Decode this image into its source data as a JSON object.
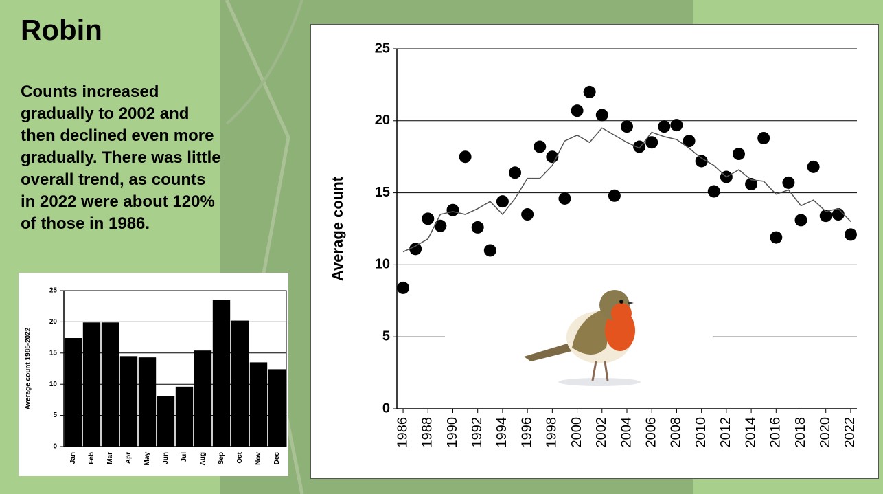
{
  "slide": {
    "title": "Robin",
    "text": [
      "Counts increased",
      "gradually to 2002 and",
      "then declined even more",
      "gradually. There was little",
      "overall trend, as counts",
      "in 2022 were about 120%",
      "of those in 1986."
    ]
  },
  "chart_data": [
    {
      "type": "scatter",
      "ylabel": "Average count",
      "x": [
        1986,
        1987,
        1988,
        1989,
        1990,
        1991,
        1992,
        1993,
        1994,
        1995,
        1996,
        1997,
        1998,
        1999,
        2000,
        2001,
        2002,
        2003,
        2004,
        2005,
        2006,
        2007,
        2008,
        2009,
        2010,
        2011,
        2012,
        2013,
        2014,
        2015,
        2016,
        2017,
        2018,
        2019,
        2020,
        2021,
        2022
      ],
      "series": [
        {
          "color": "#000000",
          "marker": "circle",
          "values": [
            8.4,
            11.1,
            13.2,
            12.7,
            13.8,
            17.5,
            12.6,
            11.0,
            14.4,
            16.4,
            13.5,
            18.2,
            17.5,
            14.6,
            20.7,
            22.0,
            20.4,
            14.8,
            19.6,
            18.2,
            18.5,
            19.6,
            19.7,
            18.6,
            17.2,
            15.1,
            16.1,
            17.7,
            15.6,
            18.8,
            11.9,
            15.7,
            13.1,
            16.8,
            13.4,
            13.5,
            12.1
          ]
        },
        {
          "color": "#555555",
          "marker": "line",
          "values": [
            10.9,
            11.3,
            11.8,
            13.5,
            13.7,
            13.5,
            13.9,
            14.4,
            13.5,
            14.6,
            16.0,
            16.0,
            16.9,
            18.6,
            19.0,
            18.5,
            19.5,
            19.0,
            18.5,
            18.1,
            19.2,
            18.9,
            18.7,
            18.1,
            17.4,
            16.9,
            16.1,
            16.6,
            15.9,
            15.8,
            14.9,
            15.2,
            14.1,
            14.5,
            13.7,
            13.9,
            13.0
          ]
        }
      ],
      "xlim": [
        1985.5,
        2022.5
      ],
      "xticks": [
        1986,
        1988,
        1990,
        1992,
        1994,
        1996,
        1998,
        2000,
        2002,
        2004,
        2006,
        2008,
        2010,
        2012,
        2014,
        2016,
        2018,
        2020,
        2022
      ],
      "ylim": [
        0,
        25
      ],
      "yticks": [
        0,
        5,
        10,
        15,
        20,
        25
      ],
      "grid": true
    },
    {
      "type": "bar",
      "ylabel": "Average count 1985-2022",
      "categories": [
        "Jan",
        "Feb",
        "Mar",
        "Apr",
        "May",
        "Jun",
        "Jul",
        "Aug",
        "Sep",
        "Oct",
        "Nov",
        "Dec"
      ],
      "values": [
        17.4,
        19.9,
        19.9,
        14.5,
        14.3,
        8.1,
        9.6,
        15.4,
        23.5,
        20.2,
        13.5,
        12.4
      ],
      "color": "#000000",
      "ylim": [
        0,
        25
      ],
      "yticks": [
        0,
        5,
        10,
        15,
        20,
        25
      ],
      "grid": true
    }
  ]
}
